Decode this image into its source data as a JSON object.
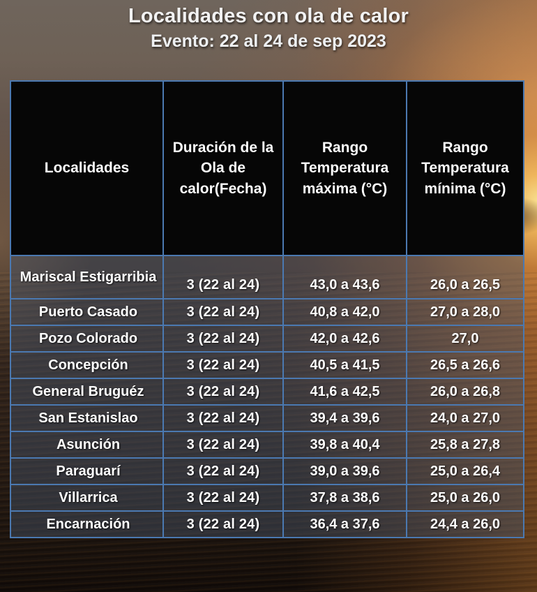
{
  "chart_data": {
    "type": "table",
    "title": "Localidades con ola de calor",
    "subtitle": "Evento: 22 al 24 de sep 2023",
    "columns": [
      "Localidades",
      "Duración de la Ola de calor(Fecha)",
      "Rango Temperatura máxima (°C)",
      "Rango Temperatura mínima (°C)"
    ],
    "rows": [
      {
        "localidad": "Mariscal Estigarribia",
        "duracion": "3 (22 al 24)",
        "temp_max": "43,0 a 43,6",
        "temp_min": "26,0 a 26,5"
      },
      {
        "localidad": "Puerto Casado",
        "duracion": "3 (22 al 24)",
        "temp_max": "40,8 a 42,0",
        "temp_min": "27,0 a 28,0"
      },
      {
        "localidad": "Pozo Colorado",
        "duracion": "3 (22 al 24)",
        "temp_max": "42,0 a 42,6",
        "temp_min": "27,0"
      },
      {
        "localidad": "Concepción",
        "duracion": "3 (22 al 24)",
        "temp_max": "40,5 a 41,5",
        "temp_min": "26,5 a 26,6"
      },
      {
        "localidad": "General Bruguéz",
        "duracion": "3 (22 al 24)",
        "temp_max": "41,6 a 42,5",
        "temp_min": "26,0 a 26,8"
      },
      {
        "localidad": "San Estanislao",
        "duracion": "3 (22 al 24)",
        "temp_max": "39,4 a 39,6",
        "temp_min": "24,0 a 27,0"
      },
      {
        "localidad": "Asunción",
        "duracion": "3 (22 al 24)",
        "temp_max": "39,8 a 40,4",
        "temp_min": "25,8 a 27,8"
      },
      {
        "localidad": "Paraguarí",
        "duracion": "3 (22 al 24)",
        "temp_max": "39,0 a 39,6",
        "temp_min": "25,0 a 26,4"
      },
      {
        "localidad": "Villarrica",
        "duracion": "3 (22 al 24)",
        "temp_max": "37,8 a 38,6",
        "temp_min": "25,0 a 26,0"
      },
      {
        "localidad": "Encarnación",
        "duracion": "3 (22 al 24)",
        "temp_max": "36,4 a 37,6",
        "temp_min": "24,4 a 26,0"
      }
    ],
    "layout": {
      "legend": "none",
      "grid": "on",
      "header_background": "#060606"
    }
  },
  "colors": {
    "table_border": "#4b79b1",
    "header_cell_background": "#060606",
    "text": "#fdfdfd",
    "row_overlay": "rgba(70,85,105,0.45)"
  }
}
